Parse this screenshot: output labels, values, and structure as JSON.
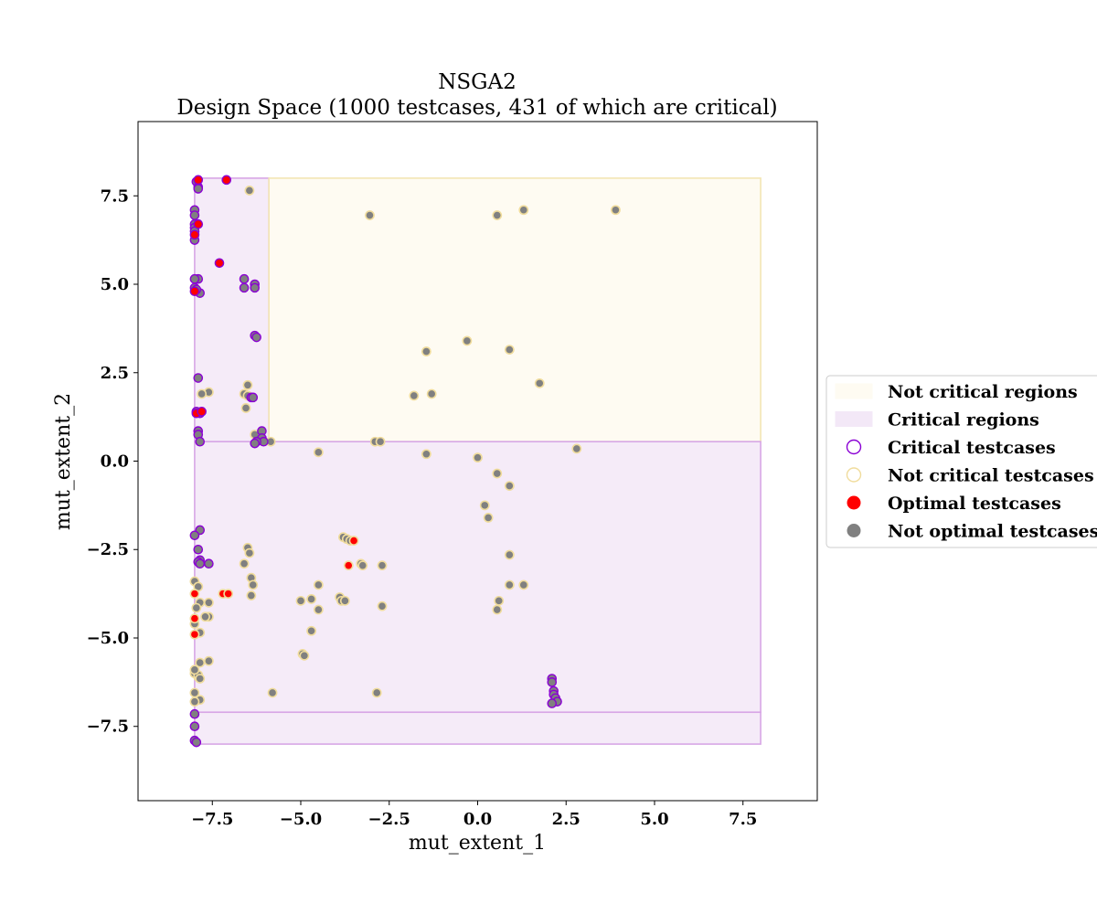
{
  "chart_data": {
    "type": "scatter",
    "title": "NSGA2",
    "subtitle": "Design Space (1000 testcases, 431 of which are critical)",
    "xlabel": "mut_extent_1",
    "ylabel": "mut_extent_2",
    "xlim": [
      -9.6,
      9.6
    ],
    "ylim": [
      -9.6,
      9.6
    ],
    "xticks": [
      -7.5,
      -5.0,
      -2.5,
      0.0,
      2.5,
      5.0,
      7.5
    ],
    "yticks": [
      -7.5,
      -5.0,
      -2.5,
      0.0,
      2.5,
      5.0,
      7.5
    ],
    "xtick_labels": [
      "−7.5",
      "−5.0",
      "−2.5",
      "0.0",
      "2.5",
      "5.0",
      "7.5"
    ],
    "ytick_labels": [
      "−7.5",
      "−5.0",
      "−2.5",
      "0.0",
      "2.5",
      "5.0",
      "7.5"
    ],
    "grid": false,
    "legend_position": "outside-right",
    "colors": {
      "critical_region_fill": "#f3e8f7",
      "critical_region_edge": "#d7a6e6",
      "not_critical_region_fill": "#fefbf2",
      "not_critical_region_edge": "#f3e6b3",
      "critical_edge": "#8a00d4",
      "not_critical_edge": "#f0dc9c",
      "optimal": "#ff0000",
      "not_optimal": "#808080"
    },
    "legend": [
      {
        "label": "Not critical regions",
        "kind": "patch-not-critical"
      },
      {
        "label": "Critical regions",
        "kind": "patch-critical"
      },
      {
        "label": "Critical testcases",
        "kind": "circle-critical"
      },
      {
        "label": "Not critical testcases",
        "kind": "circle-not-critical"
      },
      {
        "label": "Optimal testcases",
        "kind": "dot-optimal"
      },
      {
        "label": "Not optimal testcases",
        "kind": "dot-not-optimal"
      }
    ],
    "regions": [
      {
        "kind": "critical",
        "x": [
          -8.0,
          -5.9
        ],
        "y": [
          0.55,
          8.0
        ]
      },
      {
        "kind": "not-critical",
        "x": [
          -5.9,
          8.0
        ],
        "y": [
          0.55,
          8.0
        ]
      },
      {
        "kind": "critical",
        "x": [
          -8.0,
          8.0
        ],
        "y": [
          -7.1,
          0.55
        ]
      },
      {
        "kind": "critical",
        "x": [
          -8.0,
          8.0
        ],
        "y": [
          -8.0,
          -7.1
        ]
      }
    ],
    "series": [
      {
        "category": "critical-optimal",
        "points": [
          [
            -7.9,
            7.95
          ],
          [
            -7.1,
            7.95
          ],
          [
            -7.3,
            5.6
          ],
          [
            -8.0,
            6.4
          ],
          [
            -7.9,
            6.7
          ],
          [
            -8.0,
            4.8
          ],
          [
            -7.95,
            1.35
          ],
          [
            -7.8,
            1.4
          ]
        ]
      },
      {
        "category": "critical-not-optimal",
        "points": [
          [
            -7.95,
            7.9
          ],
          [
            -7.9,
            7.75
          ],
          [
            -7.9,
            7.7
          ],
          [
            -8.0,
            7.1
          ],
          [
            -8.0,
            6.95
          ],
          [
            -8.0,
            6.7
          ],
          [
            -8.0,
            6.6
          ],
          [
            -8.0,
            6.5
          ],
          [
            -8.0,
            6.25
          ],
          [
            -7.9,
            5.15
          ],
          [
            -8.0,
            5.15
          ],
          [
            -7.85,
            4.75
          ],
          [
            -8.0,
            4.9
          ],
          [
            -7.95,
            4.85
          ],
          [
            -6.6,
            5.15
          ],
          [
            -6.6,
            4.9
          ],
          [
            -6.3,
            5.0
          ],
          [
            -6.3,
            4.9
          ],
          [
            -6.3,
            3.55
          ],
          [
            -6.25,
            3.5
          ],
          [
            -7.9,
            2.35
          ],
          [
            -6.4,
            1.8
          ],
          [
            -6.35,
            1.8
          ],
          [
            -7.85,
            1.35
          ],
          [
            -7.95,
            1.4
          ],
          [
            -7.9,
            0.85
          ],
          [
            -7.9,
            0.75
          ],
          [
            -7.85,
            0.55
          ],
          [
            -6.1,
            0.85
          ],
          [
            -6.1,
            0.65
          ],
          [
            -6.05,
            0.55
          ],
          [
            -6.25,
            0.55
          ],
          [
            -6.3,
            0.5
          ],
          [
            -7.85,
            -1.95
          ],
          [
            -8.0,
            -2.1
          ],
          [
            -7.9,
            -2.5
          ],
          [
            -7.85,
            -2.8
          ],
          [
            -7.9,
            -2.85
          ],
          [
            -7.85,
            -2.9
          ],
          [
            -7.6,
            -2.9
          ],
          [
            -8.0,
            -7.15
          ],
          [
            -8.0,
            -7.5
          ],
          [
            -8.0,
            -7.9
          ],
          [
            -7.95,
            -7.95
          ],
          [
            2.1,
            -6.15
          ],
          [
            2.1,
            -6.25
          ],
          [
            2.15,
            -6.5
          ],
          [
            2.15,
            -6.6
          ],
          [
            2.2,
            -6.7
          ],
          [
            2.25,
            -6.8
          ],
          [
            2.1,
            -6.85
          ]
        ]
      },
      {
        "category": "not-critical-optimal",
        "points": [
          [
            -3.5,
            -2.25
          ],
          [
            -3.65,
            -2.95
          ],
          [
            -7.2,
            -3.75
          ],
          [
            -7.05,
            -3.75
          ],
          [
            -8.0,
            -3.75
          ],
          [
            -8.0,
            -4.45
          ],
          [
            -8.0,
            -4.9
          ]
        ]
      },
      {
        "category": "not-critical-not-optimal",
        "points": [
          [
            -6.45,
            7.65
          ],
          [
            -3.05,
            6.95
          ],
          [
            0.55,
            6.95
          ],
          [
            1.3,
            7.1
          ],
          [
            3.9,
            7.1
          ],
          [
            -1.45,
            3.1
          ],
          [
            -0.3,
            3.4
          ],
          [
            0.9,
            3.15
          ],
          [
            1.75,
            2.2
          ],
          [
            -6.5,
            2.15
          ],
          [
            -7.6,
            1.95
          ],
          [
            -7.8,
            1.9
          ],
          [
            -6.6,
            1.9
          ],
          [
            -6.5,
            1.85
          ],
          [
            -1.3,
            1.9
          ],
          [
            -1.8,
            1.85
          ],
          [
            -6.55,
            1.5
          ],
          [
            -6.3,
            0.75
          ],
          [
            -5.85,
            0.55
          ],
          [
            -2.9,
            0.55
          ],
          [
            -2.75,
            0.55
          ],
          [
            -4.5,
            0.25
          ],
          [
            -1.45,
            0.2
          ],
          [
            0.0,
            0.1
          ],
          [
            2.8,
            0.35
          ],
          [
            0.55,
            -0.35
          ],
          [
            0.9,
            -0.7
          ],
          [
            0.2,
            -1.25
          ],
          [
            0.3,
            -1.6
          ],
          [
            -3.8,
            -2.15
          ],
          [
            -3.7,
            -2.2
          ],
          [
            -3.6,
            -2.25
          ],
          [
            -6.5,
            -2.45
          ],
          [
            -6.45,
            -2.6
          ],
          [
            0.9,
            -2.65
          ],
          [
            -6.6,
            -2.9
          ],
          [
            -3.3,
            -2.9
          ],
          [
            -3.25,
            -2.95
          ],
          [
            -2.7,
            -2.95
          ],
          [
            -6.4,
            -3.3
          ],
          [
            -6.35,
            -3.5
          ],
          [
            -4.5,
            -3.5
          ],
          [
            0.9,
            -3.5
          ],
          [
            1.3,
            -3.5
          ],
          [
            -6.4,
            -3.8
          ],
          [
            -4.7,
            -3.9
          ],
          [
            -5.0,
            -3.95
          ],
          [
            -3.9,
            -3.85
          ],
          [
            -3.85,
            -3.95
          ],
          [
            -3.75,
            -3.95
          ],
          [
            -2.7,
            -4.1
          ],
          [
            -4.5,
            -4.2
          ],
          [
            -7.6,
            -4.0
          ],
          [
            -7.85,
            -4.0
          ],
          [
            0.6,
            -3.95
          ],
          [
            0.55,
            -4.2
          ],
          [
            -7.6,
            -4.4
          ],
          [
            -7.7,
            -4.4
          ],
          [
            -4.7,
            -4.8
          ],
          [
            -7.85,
            -4.85
          ],
          [
            -8.0,
            -4.6
          ],
          [
            -4.95,
            -5.45
          ],
          [
            -4.9,
            -5.5
          ],
          [
            -7.6,
            -5.65
          ],
          [
            -7.85,
            -5.7
          ],
          [
            -7.9,
            -6.1
          ],
          [
            -8.0,
            -6.0
          ],
          [
            -7.9,
            -6.05
          ],
          [
            -7.85,
            -6.15
          ],
          [
            -5.8,
            -6.55
          ],
          [
            -2.85,
            -6.55
          ],
          [
            -8.0,
            -6.55
          ],
          [
            -7.85,
            -6.75
          ],
          [
            -8.0,
            -6.8
          ],
          [
            -8.0,
            -3.4
          ],
          [
            -7.9,
            -3.55
          ],
          [
            -8.0,
            -5.9
          ],
          [
            -7.95,
            -4.15
          ]
        ]
      }
    ]
  }
}
